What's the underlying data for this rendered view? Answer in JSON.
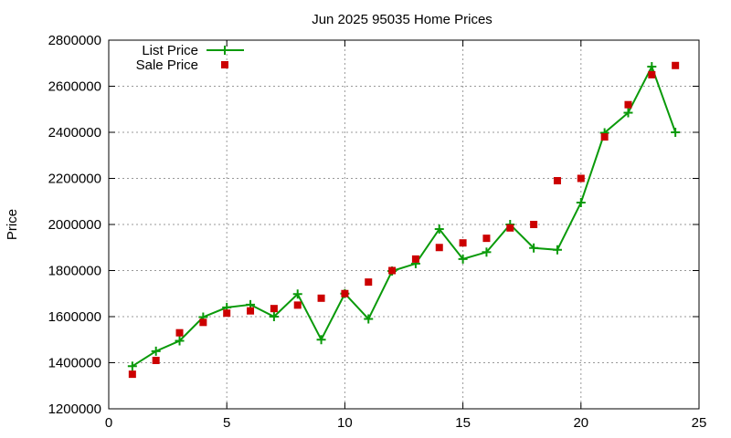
{
  "chart_data": {
    "type": "line",
    "title": "Jun 2025 95035 Home Prices",
    "xlabel": "",
    "ylabel": "Price",
    "xlim": [
      0,
      25
    ],
    "ylim": [
      1200000,
      2800000
    ],
    "xticks": [
      0,
      5,
      10,
      15,
      20,
      25
    ],
    "yticks": [
      1200000,
      1400000,
      1600000,
      1800000,
      2000000,
      2200000,
      2400000,
      2600000,
      2800000
    ],
    "grid": true,
    "legend_position": "top-left",
    "series": [
      {
        "name": "List Price",
        "style": "line-points",
        "color": "#0a9a0a",
        "marker": "plus",
        "x": [
          1,
          2,
          3,
          4,
          5,
          6,
          7,
          8,
          9,
          10,
          11,
          12,
          13,
          14,
          15,
          16,
          17,
          18,
          19,
          20,
          21,
          22,
          23,
          24
        ],
        "values": [
          1385000,
          1450000,
          1495000,
          1598000,
          1640000,
          1652000,
          1600000,
          1698000,
          1500000,
          1700000,
          1590000,
          1798000,
          1830000,
          1980000,
          1850000,
          1880000,
          2000000,
          1898000,
          1890000,
          2095000,
          2398000,
          2485000,
          2685000,
          2400000
        ]
      },
      {
        "name": "Sale Price",
        "style": "points",
        "color": "#cc0000",
        "marker": "square",
        "x": [
          1,
          2,
          3,
          4,
          5,
          6,
          7,
          8,
          9,
          10,
          11,
          12,
          13,
          14,
          15,
          16,
          17,
          18,
          19,
          20,
          21,
          22,
          23,
          24
        ],
        "values": [
          1350000,
          1410000,
          1530000,
          1575000,
          1615000,
          1625000,
          1635000,
          1650000,
          1680000,
          1700000,
          1750000,
          1800000,
          1850000,
          1900000,
          1920000,
          1940000,
          1985000,
          2000000,
          2190000,
          2200000,
          2380000,
          2520000,
          2650000,
          2690000
        ]
      }
    ]
  }
}
